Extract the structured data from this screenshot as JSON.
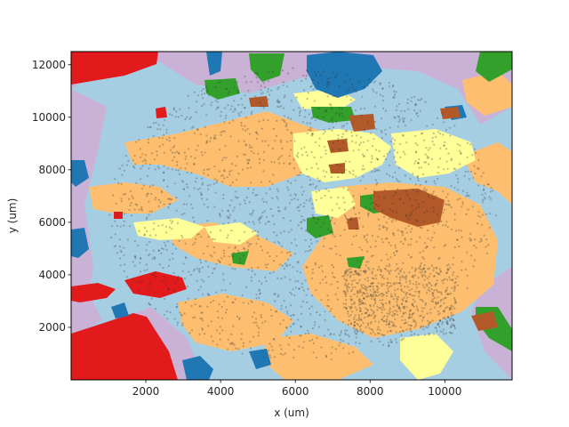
{
  "chart_data": {
    "type": "scatter",
    "title": "",
    "xlabel": "x (um)",
    "ylabel": "y (um)",
    "xlim": [
      0,
      11800
    ],
    "ylim": [
      0,
      12500
    ],
    "xticks": [
      2000,
      4000,
      6000,
      8000,
      10000
    ],
    "yticks": [
      2000,
      4000,
      6000,
      8000,
      10000,
      12000
    ],
    "grid": false,
    "legend": "none",
    "background_regions": [
      {
        "color": "#a6cee3",
        "extent": "dominant background"
      },
      {
        "color": "#fdbf6f",
        "extent": "large central and right areas"
      },
      {
        "color": "#cab2d6",
        "extent": "outer border and left side"
      },
      {
        "color": "#ffff99",
        "extent": "scattered upper-central patches"
      },
      {
        "color": "#e31a1c",
        "extent": "lower-left and upper-left corners"
      },
      {
        "color": "#1f78b4",
        "extent": "small scattered patches"
      },
      {
        "color": "#33a02c",
        "extent": "small scattered patches"
      },
      {
        "color": "#b15928",
        "extent": "small scattered patches"
      }
    ],
    "points": {
      "color": "#333333",
      "alpha": 0.3,
      "description": "dense cloud of cell centroids"
    }
  }
}
